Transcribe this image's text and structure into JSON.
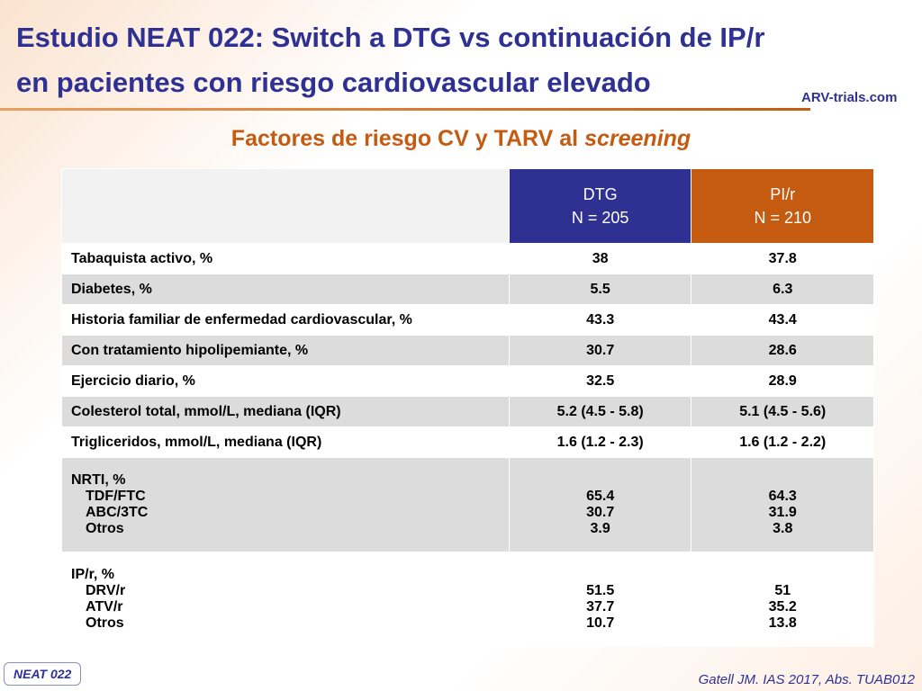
{
  "header": {
    "title_line1": "Estudio NEAT 022: Switch a DTG vs continuación de IP/r",
    "title_line2": "en pacientes con riesgo cardiovascular elevado",
    "logo": "ARV-trials.com",
    "subtitle": "Factores de riesgo CV y TARV al",
    "subtitle_emphasis": "screening"
  },
  "table": {
    "columns": [
      {
        "name": "DTG",
        "n": "N = 205"
      },
      {
        "name": "PI/r",
        "n": "N = 210"
      }
    ],
    "rows": [
      {
        "label": "Tabaquista activo, %",
        "values": [
          "38",
          "37.8"
        ]
      },
      {
        "label": "Diabetes, %",
        "values": [
          "5.5",
          "6.3"
        ]
      },
      {
        "label": "Historia familiar de enfermedad cardiovascular, %",
        "values": [
          "43.3",
          "43.4"
        ]
      },
      {
        "label": "Con tratamiento hipolipemiante, %",
        "values": [
          "30.7",
          "28.6"
        ]
      },
      {
        "label": "Ejercicio diario, %",
        "values": [
          "32.5",
          "28.9"
        ]
      },
      {
        "label": "Colesterol total, mmol/L, mediana (IQR)",
        "values": [
          "5.2 (4.5 - 5.8)",
          "5.1 (4.5 - 5.6)"
        ]
      },
      {
        "label": "Trigliceridos, mmol/L, mediana (IQR)",
        "values": [
          "1.6 (1.2 - 2.3)",
          "1.6 (1.2 - 2.2)"
        ]
      },
      {
        "label": "NRTI, %",
        "items": [
          {
            "label": "TDF/FTC",
            "values": [
              "65.4",
              "64.3"
            ]
          },
          {
            "label": "ABC/3TC",
            "values": [
              "30.7",
              "31.9"
            ]
          },
          {
            "label": "Otros",
            "values": [
              "3.9",
              "3.8"
            ]
          }
        ]
      },
      {
        "label": "IP/r, %",
        "items": [
          {
            "label": "DRV/r",
            "values": [
              "51.5",
              "51"
            ]
          },
          {
            "label": "ATV/r",
            "values": [
              "37.7",
              "35.2"
            ]
          },
          {
            "label": "Otros",
            "values": [
              "10.7",
              "13.8"
            ]
          }
        ]
      }
    ]
  },
  "footer": {
    "badge": "NEAT 022",
    "citation": "Gatell JM. IAS 2017, Abs. TUAB012"
  }
}
